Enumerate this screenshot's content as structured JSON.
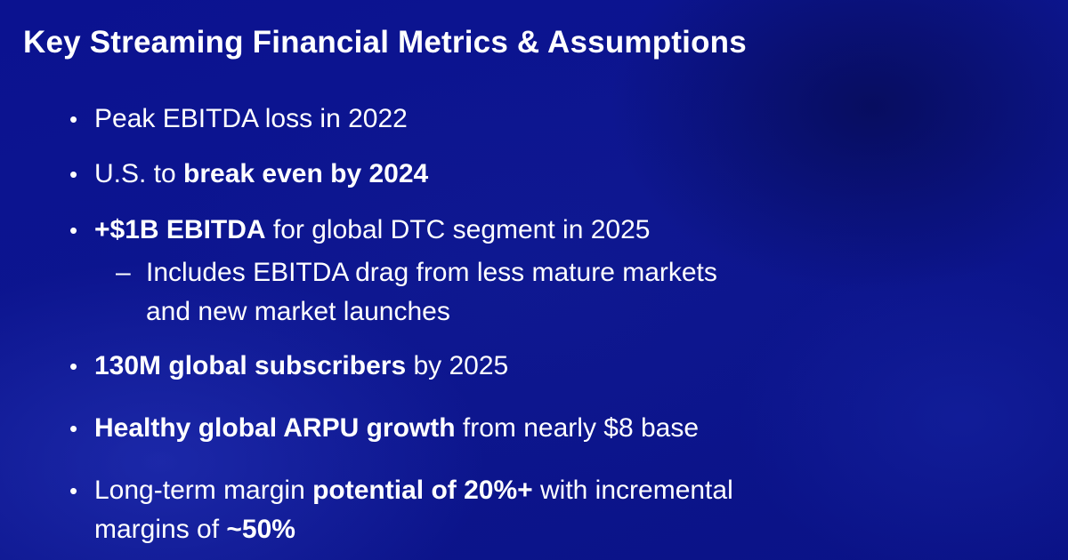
{
  "slide": {
    "title": "Key Streaming Financial Metrics & Assumptions",
    "bullets": [
      {
        "parts": [
          "Peak EBITDA loss in 2022"
        ]
      },
      {
        "parts": [
          "U.S. to ",
          "break even by 2024"
        ]
      },
      {
        "parts": [
          "+$1B EBITDA",
          " for global DTC segment in 2025"
        ]
      },
      {
        "parts": [
          "130M global subscribers",
          " by 2025"
        ]
      },
      {
        "parts": [
          "Healthy global ARPU growth",
          " from nearly $8 base"
        ]
      },
      {
        "parts": [
          "Long-term margin ",
          "potential of 20%+",
          " with incremental",
          "margins of ",
          "~50%"
        ]
      }
    ],
    "sub_bullet": {
      "marker": "–",
      "lines": [
        "Includes EBITDA drag from less mature markets",
        "and new market launches"
      ]
    },
    "bullet_marker": "•"
  }
}
